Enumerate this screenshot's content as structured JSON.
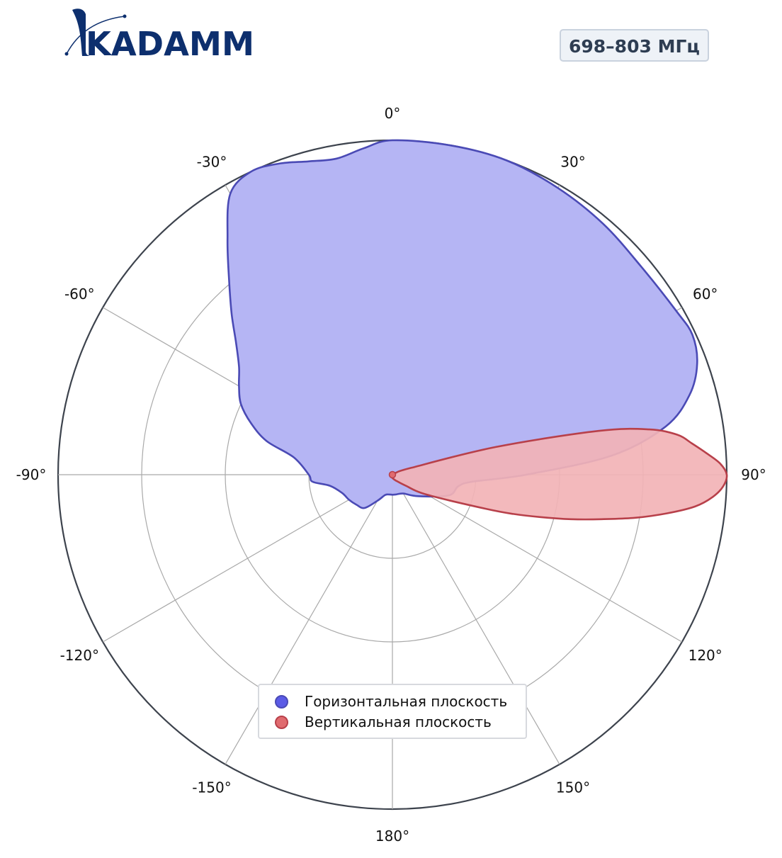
{
  "brand": {
    "name": "KADAMM",
    "color": "#0d2f6e"
  },
  "badge": {
    "text": "698–803 МГц"
  },
  "chart_data": {
    "type": "polar-area",
    "angle_direction": "clockwise",
    "angle_zero": "top",
    "angle_ticks": [
      "0°",
      "30°",
      "60°",
      "90°",
      "120°",
      "150°",
      "180°",
      "-150°",
      "-120°",
      "-90°",
      "-60°",
      "-30°"
    ],
    "radial_range": [
      0,
      1
    ],
    "radial_grid": [
      0.25,
      0.5,
      0.75,
      1.0
    ],
    "grid": true,
    "legend_placement": "lower-center",
    "series": [
      {
        "name": "Горизонтальная плоскость",
        "color": "#5b5be6",
        "fill": "#b5b5f4",
        "edge": "#4a4ab5",
        "angles": [
          0,
          10,
          20,
          30,
          40,
          50,
          60,
          65,
          70,
          75,
          80,
          85,
          90,
          95,
          100,
          110,
          130,
          150,
          170,
          180,
          -170,
          -160,
          -150,
          -140,
          -130,
          -120,
          -110,
          -100,
          -95,
          -90,
          -80,
          -75,
          -70,
          -65,
          -60,
          -55,
          -50,
          -45,
          -40,
          -35,
          -30,
          -25,
          -20,
          -15,
          -10,
          -5
        ],
        "values": [
          1.0,
          1.0,
          1.0,
          0.99,
          0.98,
          0.97,
          0.98,
          0.99,
          0.97,
          0.92,
          0.83,
          0.66,
          0.4,
          0.24,
          0.2,
          0.18,
          0.1,
          0.065,
          0.06,
          0.06,
          0.06,
          0.065,
          0.09,
          0.13,
          0.14,
          0.15,
          0.16,
          0.19,
          0.24,
          0.25,
          0.3,
          0.39,
          0.45,
          0.5,
          0.53,
          0.56,
          0.61,
          0.68,
          0.76,
          0.86,
          0.97,
          1.0,
          0.99,
          0.97,
          0.96,
          0.98
        ]
      },
      {
        "name": "Вертикальная плоскость",
        "color": "#e06b6f",
        "fill": "#f2b3b6",
        "edge": "#b8404a",
        "angles": [
          0,
          45,
          60,
          70,
          75,
          78,
          80,
          82,
          84,
          86,
          88,
          90,
          92,
          94,
          96,
          98,
          100,
          102,
          104,
          106,
          108,
          110,
          120,
          130,
          150,
          180,
          -150,
          -90,
          -30
        ],
        "values": [
          0.002,
          0.002,
          0.01,
          0.06,
          0.32,
          0.63,
          0.78,
          0.86,
          0.9,
          0.94,
          0.98,
          1.0,
          0.99,
          0.96,
          0.91,
          0.83,
          0.74,
          0.64,
          0.55,
          0.46,
          0.38,
          0.3,
          0.12,
          0.05,
          0.02,
          0.01,
          0.006,
          0.004,
          0.002
        ]
      }
    ]
  }
}
